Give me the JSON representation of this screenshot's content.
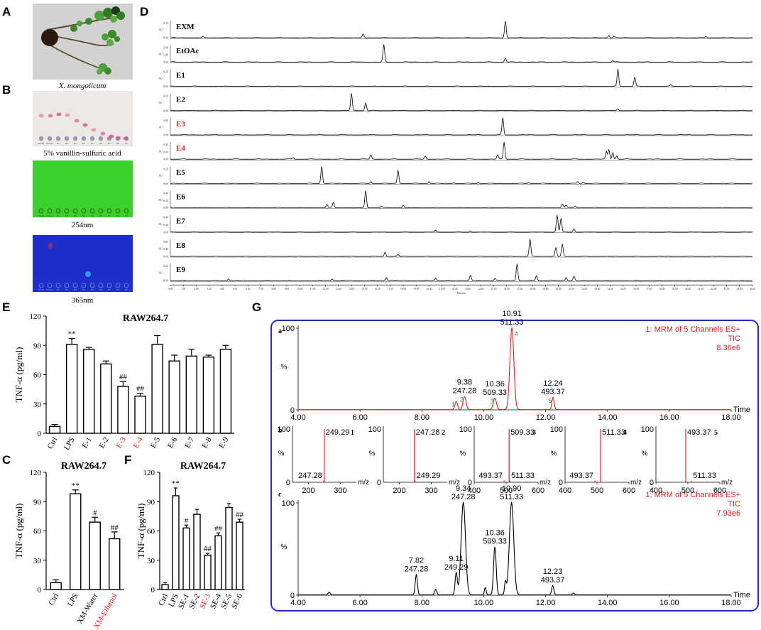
{
  "panel_letters": [
    "A",
    "B",
    "C",
    "D",
    "E",
    "F",
    "G"
  ],
  "panel_a": {
    "caption": "X. mongolicum"
  },
  "panel_b": {
    "captions": [
      "5% vanillin-sulfuric acid",
      "254nm",
      "365nm"
    ],
    "lane_labels": [
      "EXM",
      "EtOAc",
      "E1",
      "E2",
      "E3",
      "E4",
      "E5",
      "E6",
      "E7",
      "E8",
      "E9"
    ],
    "colors": {
      "plate1": "#ece8e6",
      "plate2": "#3bd12a",
      "plate3": "#1d2fc9",
      "spot_pink": "#d4467f"
    }
  },
  "panel_d": {
    "ylabel": "AU",
    "xlabel": "Minutes",
    "traces": [
      {
        "label": "EXM",
        "red": false,
        "ticks": [
          "0.25",
          "0.00"
        ],
        "peaks": [
          [
            2.5,
            0.06
          ],
          [
            14.9,
            0.2
          ],
          [
            25.9,
            1.0
          ],
          [
            33.9,
            0.15
          ],
          [
            34.3,
            0.1
          ],
          [
            41.4,
            0.08
          ]
        ]
      },
      {
        "label": "EtOAc",
        "red": false,
        "ticks": [
          "2.00",
          "1.00",
          "0.00"
        ],
        "peaks": [
          [
            16.5,
            1.0
          ],
          [
            25.9,
            0.25
          ],
          [
            34.2,
            0.08
          ]
        ]
      },
      {
        "label": "E1",
        "red": false,
        "ticks": [
          "0.25",
          "0.00"
        ],
        "peaks": [
          [
            34.6,
            1.0
          ],
          [
            35.9,
            0.55
          ],
          [
            38.7,
            0.08
          ]
        ]
      },
      {
        "label": "E2",
        "red": false,
        "ticks": [
          "0.50",
          "0.00"
        ],
        "peaks": [
          [
            14.0,
            1.0
          ],
          [
            15.1,
            0.45
          ],
          [
            34.6,
            0.1
          ]
        ]
      },
      {
        "label": "E3",
        "red": true,
        "ticks": [
          "2.00",
          "0.00"
        ],
        "peaks": [
          [
            25.7,
            1.0
          ]
        ]
      },
      {
        "label": "E4",
        "red": true,
        "ticks": [
          "0.40",
          "0.20",
          "0.00"
        ],
        "peaks": [
          [
            9.5,
            0.1
          ],
          [
            15.5,
            0.25
          ],
          [
            19.7,
            0.18
          ],
          [
            25.3,
            0.25
          ],
          [
            25.8,
            1.0
          ],
          [
            33.7,
            0.45
          ],
          [
            33.9,
            0.55
          ],
          [
            34.2,
            0.4
          ],
          [
            34.5,
            0.2
          ]
        ]
      },
      {
        "label": "E5",
        "red": false,
        "ticks": [
          "0.25",
          "0.00"
        ],
        "peaks": [
          [
            11.7,
            1.0
          ],
          [
            15.5,
            0.12
          ],
          [
            17.6,
            0.8
          ],
          [
            20.0,
            0.12
          ],
          [
            21.9,
            0.08
          ],
          [
            23.8,
            0.08
          ],
          [
            27.7,
            0.1
          ],
          [
            31.5,
            0.12
          ],
          [
            31.9,
            0.1
          ]
        ]
      },
      {
        "label": "E6",
        "red": false,
        "ticks": [
          "0.40",
          "0.25",
          "0.00"
        ],
        "peaks": [
          [
            12.1,
            0.2
          ],
          [
            12.6,
            0.3
          ],
          [
            15.1,
            1.0
          ],
          [
            16.3,
            0.1
          ],
          [
            18.0,
            0.15
          ],
          [
            30.3,
            0.2
          ],
          [
            30.6,
            0.15
          ],
          [
            31.3,
            0.1
          ]
        ]
      },
      {
        "label": "E7",
        "red": false,
        "ticks": [
          "0.40",
          "0.20",
          "0.00"
        ],
        "peaks": [
          [
            20.5,
            0.1
          ],
          [
            23.2,
            0.08
          ],
          [
            29.9,
            1.0
          ],
          [
            30.2,
            0.8
          ],
          [
            31.2,
            0.2
          ]
        ]
      },
      {
        "label": "E8",
        "red": false,
        "ticks": [
          "0.60",
          "0.40",
          "0.00"
        ],
        "peaks": [
          [
            16.6,
            0.25
          ],
          [
            17.6,
            0.1
          ],
          [
            27.8,
            1.0
          ],
          [
            29.8,
            0.5
          ],
          [
            30.3,
            0.7
          ]
        ]
      },
      {
        "label": "E9",
        "red": false,
        "ticks": [
          "0.50",
          "0.00"
        ],
        "peaks": [
          [
            4.5,
            0.12
          ],
          [
            12.5,
            0.1
          ],
          [
            16.7,
            0.2
          ],
          [
            20.5,
            0.15
          ],
          [
            23.2,
            0.3
          ],
          [
            25.1,
            0.15
          ],
          [
            26.8,
            1.0
          ],
          [
            28.3,
            0.3
          ],
          [
            30.6,
            0.2
          ],
          [
            31.2,
            0.25
          ]
        ]
      }
    ],
    "x_ticks": [
      "0.00",
      "1.00",
      "2.00",
      "3.00",
      "4.00",
      "5.00",
      "6.00",
      "7.00",
      "8.00",
      "9.00",
      "10.00",
      "11.00",
      "12.00",
      "13.00",
      "14.00",
      "15.00",
      "16.00",
      "17.00",
      "18.00",
      "19.00",
      "20.00",
      "21.00",
      "22.00",
      "23.00",
      "24.00",
      "25.00",
      "26.00",
      "27.00",
      "28.00",
      "29.00",
      "30.00",
      "31.00",
      "32.00",
      "33.00",
      "34.00",
      "35.00",
      "36.00",
      "37.00",
      "38.00",
      "39.00",
      "40.00",
      "41.00",
      "42.00",
      "43.00",
      "44.00",
      "45.00"
    ],
    "xlim": [
      0,
      45
    ]
  },
  "chart_data": [
    {
      "panel": "E",
      "type": "bar",
      "title": "RAW264.7",
      "ylabel": "TNF-α (pg/ml)",
      "ylim": [
        0,
        120
      ],
      "yticks": [
        "0",
        "30",
        "60",
        "90",
        "120"
      ],
      "categories": [
        "Ctrl",
        "LPS",
        "E-1",
        "E-2",
        "E-3",
        "E-4",
        "E-5",
        "E-6",
        "E-7",
        "E-8",
        "E-9"
      ],
      "red_categories": [
        "E-3",
        "E-4"
      ],
      "values": [
        7,
        91,
        86,
        71,
        48,
        38,
        91,
        74,
        79,
        78,
        86
      ],
      "errors": [
        2,
        6,
        2,
        3,
        5,
        3,
        9,
        6,
        7,
        2,
        4
      ],
      "annotations": [
        "",
        "**",
        "",
        "",
        "##",
        "##",
        "",
        "",
        "",
        "",
        ""
      ]
    },
    {
      "panel": "C",
      "type": "bar",
      "title": "RAW264.7",
      "ylabel": "TNF-α (pg/ml)",
      "ylim": [
        0,
        120
      ],
      "yticks": [
        "0",
        "30",
        "60",
        "90",
        "120"
      ],
      "categories": [
        "Ctrl",
        "LPS",
        "XM-Water",
        "XM-Ethanol"
      ],
      "red_categories": [
        "XM-Ethanol"
      ],
      "values": [
        7,
        98,
        69,
        52
      ],
      "errors": [
        3,
        4,
        5,
        7
      ],
      "annotations": [
        "",
        "**",
        "#",
        "##"
      ]
    },
    {
      "panel": "F",
      "type": "bar",
      "title": "RAW264.7",
      "ylabel": "TNF-α (pg/ml)",
      "ylim": [
        0,
        120
      ],
      "yticks": [
        "0",
        "30",
        "60",
        "90",
        "120"
      ],
      "categories": [
        "Ctrl",
        "LPS",
        "SE-1",
        "SE-2",
        "SE-3",
        "SE-4",
        "SE-5",
        "SE-6"
      ],
      "red_categories": [
        "SE-3"
      ],
      "values": [
        5,
        96,
        63,
        77,
        35,
        55,
        84,
        69
      ],
      "errors": [
        2,
        8,
        3,
        5,
        2,
        3,
        4,
        3
      ],
      "annotations": [
        "",
        "**",
        "#",
        "",
        "##",
        "##",
        "",
        "##"
      ]
    },
    {
      "panel": "G-a",
      "type": "line",
      "xlabel": "Time",
      "ylabel": "%",
      "xlim": [
        4,
        18
      ],
      "ylim": [
        0,
        100
      ],
      "x_ticks": [
        "4.00",
        "6.00",
        "8.00",
        "10.00",
        "12.00",
        "14.00",
        "16.00",
        "18.00"
      ],
      "y_ticks": [
        "0",
        "100"
      ],
      "header": [
        "1: MRM of 5 Channels ES+",
        "TIC",
        "8.36e6"
      ],
      "peaks": [
        {
          "x": 9.11,
          "y": 10,
          "w": 0.06,
          "num": "1"
        },
        {
          "x": 9.38,
          "y": 16,
          "w": 0.07,
          "num": "2",
          "label": [
            "9.38",
            "247.28"
          ]
        },
        {
          "x": 10.36,
          "y": 14,
          "w": 0.07,
          "num": "3",
          "label": [
            "10.36",
            "509.33"
          ]
        },
        {
          "x": 10.91,
          "y": 100,
          "w": 0.09,
          "num": "4",
          "label": [
            "10.91",
            "511.33"
          ]
        },
        {
          "x": 12.24,
          "y": 15,
          "w": 0.05,
          "num": "5",
          "label": [
            "12.24",
            "493.37"
          ]
        }
      ]
    },
    {
      "panel": "G-b",
      "type": "bar",
      "xlabel": "m/z",
      "spectra": [
        {
          "id": "1",
          "xlim": [
            150,
            350
          ],
          "xticks": [
            "200",
            "300"
          ],
          "lines": [
            {
              "mz": 249.29,
              "y": 100,
              "label": "249.29"
            },
            {
              "mz": 247.28,
              "y": 3,
              "label": "247.28"
            }
          ]
        },
        {
          "id": "2",
          "xlim": [
            150,
            350
          ],
          "xticks": [
            "200",
            "300"
          ],
          "lines": [
            {
              "mz": 247.28,
              "y": 100,
              "label": "247.28"
            },
            {
              "mz": 249.29,
              "y": 3,
              "label": "249.29"
            }
          ]
        },
        {
          "id": "3",
          "xlim": [
            400,
            600
          ],
          "xticks": [
            "400",
            "500",
            "600"
          ],
          "lines": [
            {
              "mz": 509.33,
              "y": 100,
              "label": "509.33"
            },
            {
              "mz": 493.37,
              "y": 3,
              "label": "493.37"
            },
            {
              "mz": 511.33,
              "y": 3,
              "label": "511.33"
            }
          ]
        },
        {
          "id": "4",
          "xlim": [
            400,
            600
          ],
          "xticks": [
            "400",
            "500",
            "600"
          ],
          "lines": [
            {
              "mz": 511.33,
              "y": 100,
              "label": "511.33"
            },
            {
              "mz": 493.37,
              "y": 3,
              "label": "493.37"
            }
          ]
        },
        {
          "id": "5",
          "xlim": [
            400,
            600
          ],
          "xticks": [
            "400",
            "500",
            "600"
          ],
          "lines": [
            {
              "mz": 493.37,
              "y": 100,
              "label": "493.37"
            },
            {
              "mz": 511.33,
              "y": 3,
              "label": "511.33"
            }
          ]
        }
      ]
    },
    {
      "panel": "G-c",
      "type": "line",
      "xlabel": "Time",
      "ylabel": "%",
      "xlim": [
        4,
        18
      ],
      "ylim": [
        0,
        100
      ],
      "x_ticks": [
        "4.00",
        "6.00",
        "8.00",
        "10.00",
        "12.00",
        "14.00",
        "16.00",
        "18.00"
      ],
      "y_ticks": [
        "0",
        "100"
      ],
      "header": [
        "1: MRM of 5 Channels ES+",
        "TIC",
        "7.93e6"
      ],
      "peaks": [
        {
          "x": 5.0,
          "y": 3,
          "w": 0.05
        },
        {
          "x": 7.82,
          "y": 22,
          "w": 0.05,
          "label": [
            "7.82",
            "247.28"
          ]
        },
        {
          "x": 8.45,
          "y": 6,
          "w": 0.05
        },
        {
          "x": 9.11,
          "y": 24,
          "w": 0.05,
          "label": [
            "9.11",
            "249.29"
          ]
        },
        {
          "x": 9.34,
          "y": 100,
          "w": 0.1,
          "label": [
            "9.34",
            "247.28"
          ]
        },
        {
          "x": 10.05,
          "y": 8,
          "w": 0.04
        },
        {
          "x": 10.36,
          "y": 52,
          "w": 0.06,
          "label": [
            "10.36",
            "509.33"
          ]
        },
        {
          "x": 10.7,
          "y": 14,
          "w": 0.04
        },
        {
          "x": 10.9,
          "y": 100,
          "w": 0.1,
          "label": [
            "10.90",
            "511.33"
          ]
        },
        {
          "x": 12.23,
          "y": 10,
          "w": 0.05,
          "label": [
            "12.23",
            "493.37"
          ]
        },
        {
          "x": 12.9,
          "y": 2,
          "w": 0.05
        }
      ]
    }
  ]
}
